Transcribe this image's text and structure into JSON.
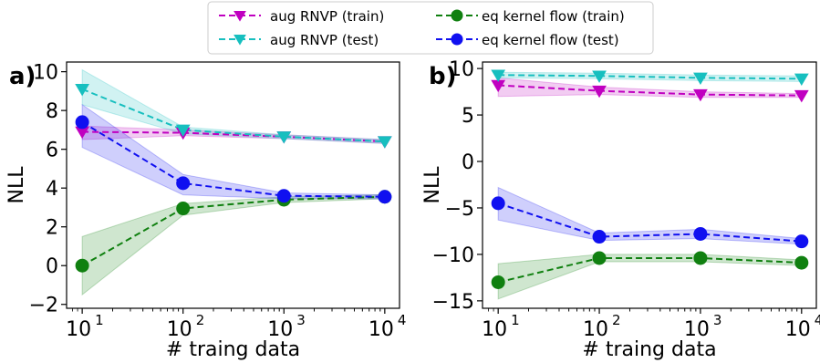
{
  "chart_data": [
    {
      "panel": "a)",
      "type": "line",
      "x": [
        10,
        100,
        1000,
        10000
      ],
      "xscale": "log",
      "xlabel": "# traing data",
      "ylabel": "NLL",
      "xlim": [
        7,
        14000
      ],
      "ylim": [
        -2.2,
        10.5
      ],
      "yticks": [
        -2,
        0,
        2,
        4,
        6,
        8,
        10
      ],
      "xtick_labels": [
        "10",
        "10",
        "10",
        "10"
      ],
      "xtick_exponents": [
        "1",
        "2",
        "3",
        "4"
      ],
      "grid": false,
      "series": [
        {
          "name": "aug RNVP (train)",
          "color": "#c000c0",
          "marker": "triangle-down",
          "values": [
            6.9,
            6.85,
            6.65,
            6.4
          ],
          "lower": [
            6.5,
            6.7,
            6.55,
            6.3
          ],
          "upper": [
            7.2,
            7.0,
            6.75,
            6.5
          ]
        },
        {
          "name": "aug RNVP (test)",
          "color": "#17bfbf",
          "marker": "triangle-down",
          "values": [
            9.1,
            7.0,
            6.65,
            6.4
          ],
          "lower": [
            8.3,
            6.8,
            6.55,
            6.3
          ],
          "upper": [
            10.1,
            7.15,
            6.75,
            6.5
          ]
        },
        {
          "name": "eq kernel flow (train)",
          "color": "#108010",
          "marker": "circle",
          "values": [
            0.0,
            2.95,
            3.4,
            3.55
          ],
          "lower": [
            -1.5,
            2.6,
            3.25,
            3.45
          ],
          "upper": [
            1.5,
            3.2,
            3.55,
            3.65
          ]
        },
        {
          "name": "eq kernel flow (test)",
          "color": "#1010f0",
          "marker": "circle",
          "values": [
            7.4,
            4.25,
            3.6,
            3.55
          ],
          "lower": [
            6.1,
            3.65,
            3.45,
            3.45
          ],
          "upper": [
            8.3,
            4.7,
            3.75,
            3.65
          ]
        }
      ]
    },
    {
      "panel": "b)",
      "type": "line",
      "x": [
        10,
        100,
        1000,
        10000
      ],
      "xscale": "log",
      "xlabel": "# traing data",
      "ylabel": "NLL",
      "xlim": [
        7,
        14000
      ],
      "ylim": [
        -15.8,
        10.7
      ],
      "yticks": [
        -15,
        -10,
        -5,
        0,
        5,
        10
      ],
      "xtick_labels": [
        "10",
        "10",
        "10",
        "10"
      ],
      "xtick_exponents": [
        "1",
        "2",
        "3",
        "4"
      ],
      "grid": false,
      "series": [
        {
          "name": "aug RNVP (train)",
          "color": "#c000c0",
          "marker": "triangle-down",
          "values": [
            8.2,
            7.6,
            7.2,
            7.1
          ],
          "lower": [
            7.0,
            7.2,
            6.9,
            6.9
          ],
          "upper": [
            9.0,
            8.0,
            7.5,
            7.3
          ]
        },
        {
          "name": "aug RNVP (test)",
          "color": "#17bfbf",
          "marker": "triangle-down",
          "values": [
            9.3,
            9.2,
            9.0,
            8.9
          ],
          "lower": [
            9.0,
            8.9,
            8.7,
            8.6
          ],
          "upper": [
            9.6,
            9.5,
            9.3,
            9.2
          ]
        },
        {
          "name": "eq kernel flow (train)",
          "color": "#108010",
          "marker": "circle",
          "values": [
            -13.0,
            -10.4,
            -10.4,
            -10.9
          ],
          "lower": [
            -14.8,
            -10.8,
            -10.8,
            -11.2
          ],
          "upper": [
            -11.0,
            -10.0,
            -10.0,
            -10.6
          ]
        },
        {
          "name": "eq kernel flow (test)",
          "color": "#1010f0",
          "marker": "circle",
          "values": [
            -4.5,
            -8.1,
            -7.8,
            -8.6
          ],
          "lower": [
            -6.3,
            -8.5,
            -8.3,
            -8.9
          ],
          "upper": [
            -2.8,
            -7.7,
            -7.3,
            -8.3
          ]
        }
      ]
    }
  ],
  "legend": {
    "placement": "top-center",
    "entries": [
      {
        "label": "aug RNVP (train)",
        "color": "#c000c0",
        "marker": "triangle-down"
      },
      {
        "label": "aug RNVP (test)",
        "color": "#17bfbf",
        "marker": "triangle-down"
      },
      {
        "label": "eq kernel flow (train)",
        "color": "#108010",
        "marker": "circle"
      },
      {
        "label": "eq kernel flow (test)",
        "color": "#1010f0",
        "marker": "circle"
      }
    ]
  }
}
